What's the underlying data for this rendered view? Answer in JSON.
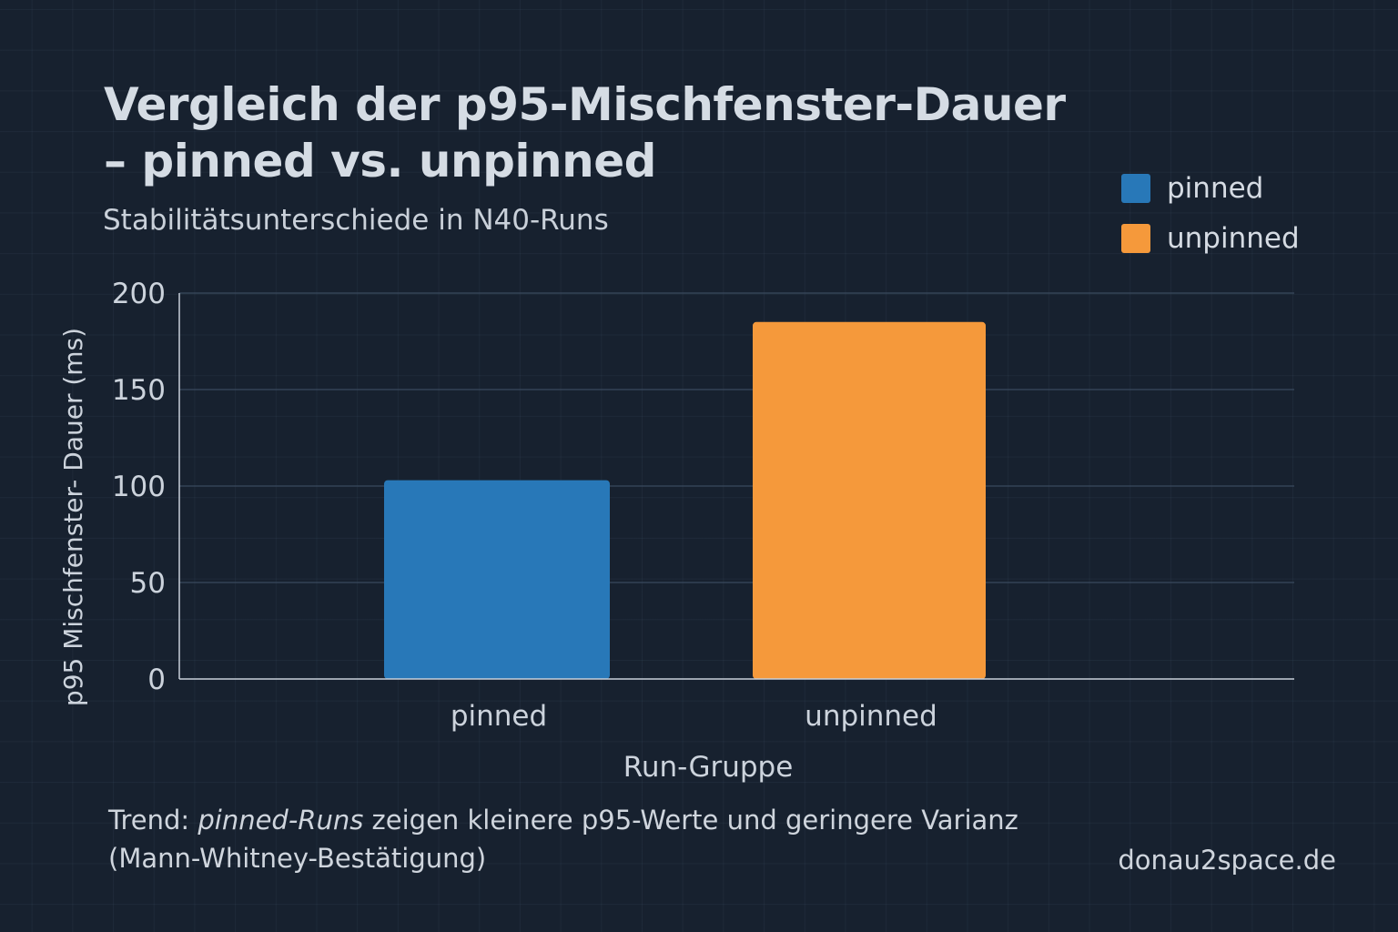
{
  "chart_data": {
    "type": "bar",
    "title_line1": "Vergleich der p95-Mischfenster-Dauer",
    "title_line2": "– pinned vs. unpinned",
    "subtitle": "Stabilitätsunterschiede in N40-Runs",
    "categories": [
      "pinned",
      "unpinned"
    ],
    "values": [
      103,
      185
    ],
    "colors": [
      "#2878b8",
      "#f5993b"
    ],
    "xlabel": "Run-Gruppe",
    "ylabel": "p95 Mischfenster- Dauer (ms)",
    "ylim": [
      0,
      200
    ],
    "yticks": [
      "0",
      "50",
      "100",
      "150",
      "200"
    ],
    "grid": true,
    "legend": {
      "placement": "top-right",
      "entries": [
        "pinned",
        "unpinned"
      ]
    }
  },
  "footer": {
    "prefix": "Trend: ",
    "emphasis": "pinned-Runs",
    "rest": " zeigen kleinere p95-Werte und geringere Varianz",
    "line2": "(Mann-Whitney-Bestätigung)"
  },
  "brand": "donau2space.de"
}
